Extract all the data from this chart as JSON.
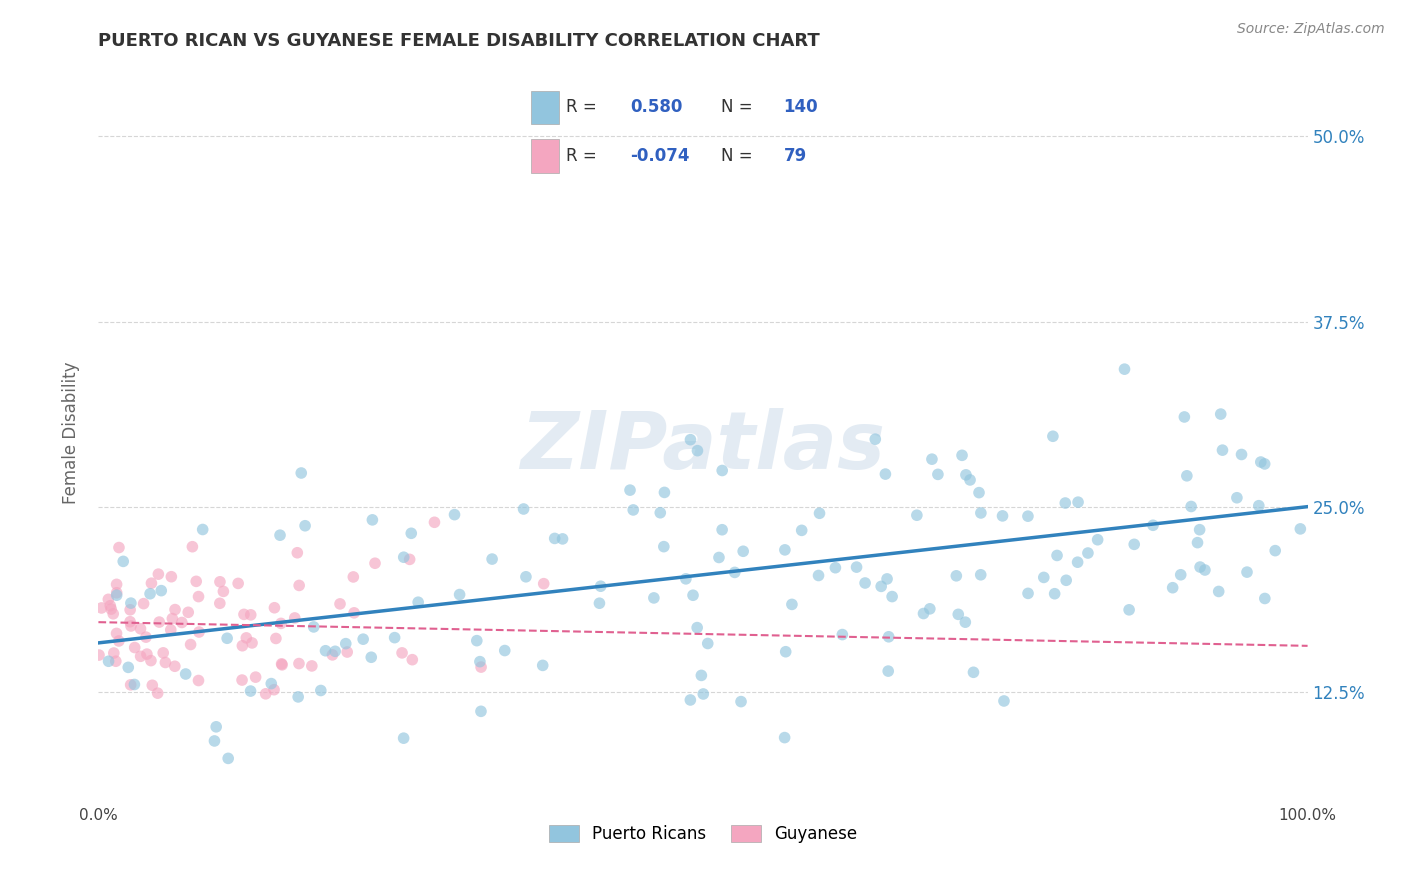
{
  "title": "PUERTO RICAN VS GUYANESE FEMALE DISABILITY CORRELATION CHART",
  "source": "Source: ZipAtlas.com",
  "ylabel": "Female Disability",
  "x_min": 0.0,
  "x_max": 1.0,
  "y_min": 0.05,
  "y_max": 0.55,
  "x_ticks": [
    0.0,
    0.1,
    0.2,
    0.3,
    0.4,
    0.5,
    0.6,
    0.7,
    0.8,
    0.9,
    1.0
  ],
  "x_tick_labels": [
    "0.0%",
    "",
    "",
    "",
    "",
    "",
    "",
    "",
    "",
    "",
    "100.0%"
  ],
  "y_ticks": [
    0.125,
    0.25,
    0.375,
    0.5
  ],
  "y_tick_labels": [
    "12.5%",
    "25.0%",
    "37.5%",
    "50.0%"
  ],
  "blue_R": 0.58,
  "blue_N": 140,
  "pink_R": -0.074,
  "pink_N": 79,
  "blue_color": "#92c5de",
  "pink_color": "#f4a6c0",
  "blue_line_color": "#3182bd",
  "pink_line_color": "#e06090",
  "grid_color": "#cccccc",
  "background_color": "#ffffff",
  "watermark": "ZIPatlas",
  "legend_label_blue": "Puerto Ricans",
  "legend_label_pink": "Guyanese",
  "blue_intercept": 0.158,
  "blue_slope": 0.092,
  "pink_intercept": 0.172,
  "pink_slope": -0.016,
  "stats_text_color": "#3060c0",
  "stats_label_color": "#333333"
}
